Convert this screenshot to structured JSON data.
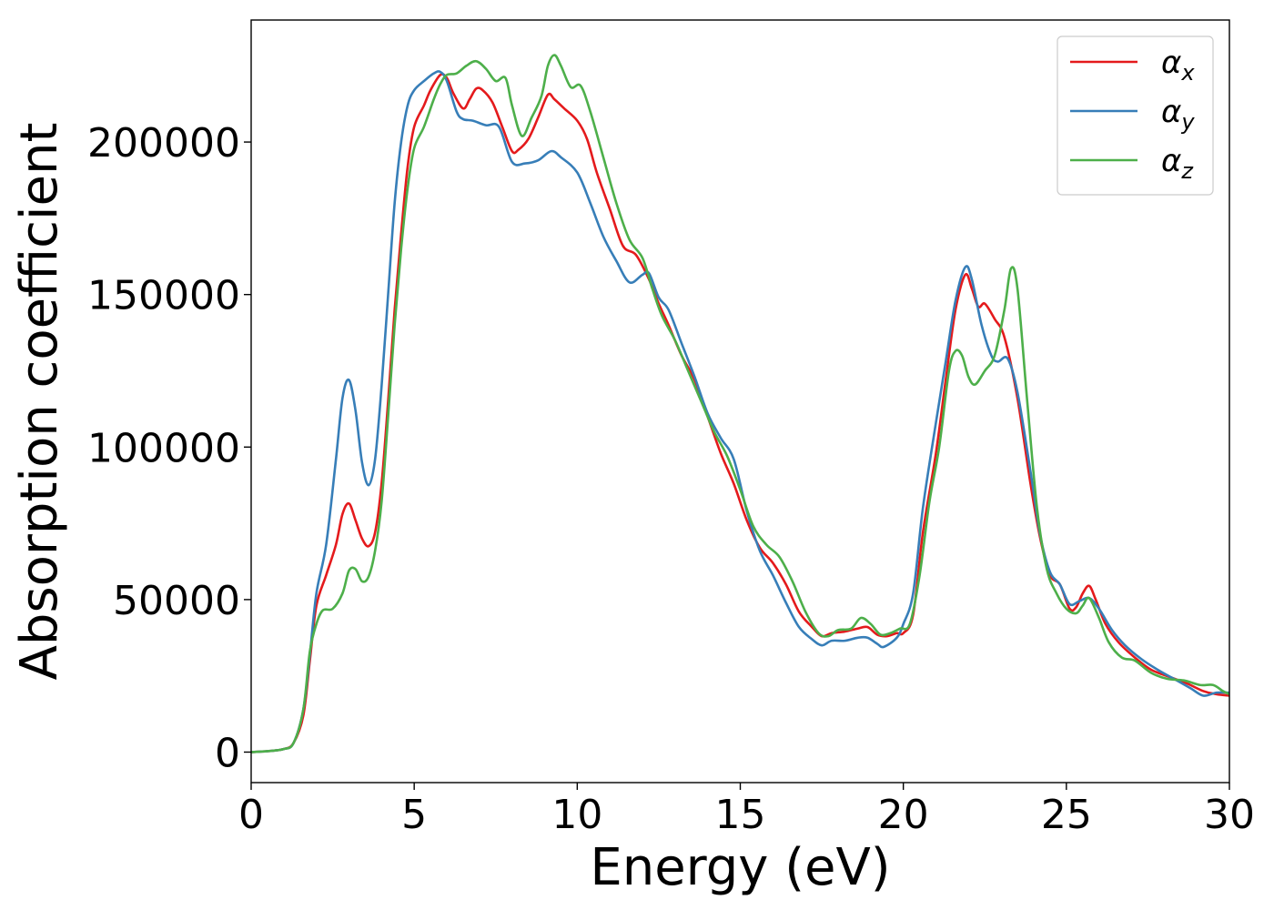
{
  "chart_data": {
    "type": "line",
    "title": "",
    "xlabel": "Energy (eV)",
    "ylabel": "Absorption coefficient",
    "xlim": [
      0,
      30
    ],
    "ylim": [
      -10000,
      240000
    ],
    "xticks": [
      0,
      5,
      10,
      15,
      20,
      25,
      30
    ],
    "yticks": [
      0,
      50000,
      100000,
      150000,
      200000
    ],
    "grid": false,
    "legend_position": "top-right",
    "series": [
      {
        "name": "α_x",
        "label_main": "α",
        "label_sub": "x",
        "color": "#e41a1c",
        "points": [
          [
            0,
            0
          ],
          [
            0.5,
            300
          ],
          [
            1,
            1000
          ],
          [
            1.3,
            3000
          ],
          [
            1.6,
            12000
          ],
          [
            1.8,
            30000
          ],
          [
            2,
            48000
          ],
          [
            2.3,
            58000
          ],
          [
            2.6,
            68000
          ],
          [
            2.8,
            78000
          ],
          [
            3,
            81500
          ],
          [
            3.2,
            76000
          ],
          [
            3.4,
            70000
          ],
          [
            3.6,
            67500
          ],
          [
            3.8,
            72000
          ],
          [
            4,
            88000
          ],
          [
            4.2,
            115000
          ],
          [
            4.4,
            145000
          ],
          [
            4.6,
            170000
          ],
          [
            4.8,
            192000
          ],
          [
            5,
            205000
          ],
          [
            5.3,
            212000
          ],
          [
            5.5,
            217000
          ],
          [
            5.8,
            222000
          ],
          [
            6,
            221000
          ],
          [
            6.2,
            216000
          ],
          [
            6.5,
            211000
          ],
          [
            6.7,
            214000
          ],
          [
            6.9,
            217500
          ],
          [
            7.1,
            217000
          ],
          [
            7.4,
            213000
          ],
          [
            7.7,
            205000
          ],
          [
            8,
            197000
          ],
          [
            8.2,
            197500
          ],
          [
            8.5,
            201000
          ],
          [
            8.8,
            208000
          ],
          [
            9.1,
            215500
          ],
          [
            9.3,
            214000
          ],
          [
            9.6,
            211000
          ],
          [
            10,
            207000
          ],
          [
            10.3,
            201000
          ],
          [
            10.6,
            190000
          ],
          [
            11,
            178000
          ],
          [
            11.4,
            166000
          ],
          [
            11.8,
            163000
          ],
          [
            12.2,
            155000
          ],
          [
            12.5,
            147000
          ],
          [
            12.8,
            140000
          ],
          [
            13.2,
            130000
          ],
          [
            13.6,
            122000
          ],
          [
            14,
            110000
          ],
          [
            14.4,
            98000
          ],
          [
            14.8,
            88000
          ],
          [
            15.2,
            76000
          ],
          [
            15.6,
            67000
          ],
          [
            16,
            62000
          ],
          [
            16.4,
            55000
          ],
          [
            16.8,
            46000
          ],
          [
            17.2,
            41000
          ],
          [
            17.5,
            38000
          ],
          [
            17.8,
            39000
          ],
          [
            18.2,
            39500
          ],
          [
            18.6,
            40500
          ],
          [
            18.9,
            41000
          ],
          [
            19.2,
            38500
          ],
          [
            19.5,
            38000
          ],
          [
            19.8,
            39000
          ],
          [
            20,
            39000
          ],
          [
            20.3,
            45000
          ],
          [
            20.6,
            72000
          ],
          [
            21,
            98000
          ],
          [
            21.3,
            122000
          ],
          [
            21.6,
            145000
          ],
          [
            21.9,
            156500
          ],
          [
            22.1,
            152000
          ],
          [
            22.3,
            146000
          ],
          [
            22.5,
            147000
          ],
          [
            22.8,
            142000
          ],
          [
            23.1,
            136000
          ],
          [
            23.5,
            116000
          ],
          [
            23.9,
            88000
          ],
          [
            24.2,
            70000
          ],
          [
            24.5,
            58000
          ],
          [
            24.8,
            55000
          ],
          [
            25.1,
            47000
          ],
          [
            25.3,
            47500
          ],
          [
            25.5,
            52000
          ],
          [
            25.7,
            54500
          ],
          [
            25.9,
            50000
          ],
          [
            26.2,
            42000
          ],
          [
            26.6,
            36000
          ],
          [
            27.1,
            31000
          ],
          [
            27.6,
            27000
          ],
          [
            28.2,
            24500
          ],
          [
            28.7,
            22500
          ],
          [
            29.2,
            20000
          ],
          [
            29.6,
            19000
          ],
          [
            30,
            18500
          ]
        ]
      },
      {
        "name": "α_y",
        "label_main": "α",
        "label_sub": "y",
        "color": "#377eb8",
        "points": [
          [
            0,
            0
          ],
          [
            0.5,
            300
          ],
          [
            1,
            1000
          ],
          [
            1.3,
            3000
          ],
          [
            1.6,
            14000
          ],
          [
            1.8,
            32000
          ],
          [
            2,
            52000
          ],
          [
            2.3,
            68000
          ],
          [
            2.6,
            96000
          ],
          [
            2.8,
            116000
          ],
          [
            3,
            122000
          ],
          [
            3.2,
            112000
          ],
          [
            3.4,
            95000
          ],
          [
            3.6,
            87500
          ],
          [
            3.8,
            96000
          ],
          [
            4,
            120000
          ],
          [
            4.2,
            150000
          ],
          [
            4.4,
            180000
          ],
          [
            4.6,
            200000
          ],
          [
            4.8,
            212000
          ],
          [
            5,
            217000
          ],
          [
            5.3,
            220000
          ],
          [
            5.6,
            222500
          ],
          [
            5.8,
            223000
          ],
          [
            6,
            220000
          ],
          [
            6.3,
            210000
          ],
          [
            6.5,
            207500
          ],
          [
            6.8,
            207000
          ],
          [
            7.2,
            205500
          ],
          [
            7.6,
            205000
          ],
          [
            8,
            193500
          ],
          [
            8.4,
            193000
          ],
          [
            8.8,
            194000
          ],
          [
            9.2,
            197000
          ],
          [
            9.5,
            195000
          ],
          [
            10,
            190000
          ],
          [
            10.4,
            180000
          ],
          [
            10.8,
            169000
          ],
          [
            11.2,
            161000
          ],
          [
            11.6,
            154000
          ],
          [
            12,
            156500
          ],
          [
            12.2,
            157000
          ],
          [
            12.5,
            149000
          ],
          [
            12.8,
            145000
          ],
          [
            13.2,
            134000
          ],
          [
            13.6,
            123000
          ],
          [
            14,
            111000
          ],
          [
            14.4,
            103000
          ],
          [
            14.8,
            96000
          ],
          [
            15.2,
            79000
          ],
          [
            15.6,
            66000
          ],
          [
            16,
            58000
          ],
          [
            16.4,
            49000
          ],
          [
            16.8,
            41000
          ],
          [
            17.2,
            37000
          ],
          [
            17.5,
            35000
          ],
          [
            17.8,
            36500
          ],
          [
            18.2,
            36500
          ],
          [
            18.6,
            37500
          ],
          [
            18.9,
            37500
          ],
          [
            19.2,
            35500
          ],
          [
            19.4,
            34500
          ],
          [
            19.8,
            37500
          ],
          [
            20,
            42000
          ],
          [
            20.3,
            52000
          ],
          [
            20.6,
            80000
          ],
          [
            21,
            108000
          ],
          [
            21.3,
            128000
          ],
          [
            21.6,
            148000
          ],
          [
            21.9,
            159000
          ],
          [
            22.1,
            155000
          ],
          [
            22.4,
            140000
          ],
          [
            22.7,
            130000
          ],
          [
            22.9,
            128000
          ],
          [
            23.2,
            129000
          ],
          [
            23.5,
            118000
          ],
          [
            23.9,
            92000
          ],
          [
            24.2,
            71000
          ],
          [
            24.5,
            59000
          ],
          [
            24.8,
            55000
          ],
          [
            25.1,
            48500
          ],
          [
            25.4,
            49500
          ],
          [
            25.7,
            50500
          ],
          [
            26,
            47000
          ],
          [
            26.4,
            40000
          ],
          [
            26.8,
            35000
          ],
          [
            27.3,
            30500
          ],
          [
            27.8,
            27000
          ],
          [
            28.3,
            24000
          ],
          [
            28.8,
            21000
          ],
          [
            29.2,
            18500
          ],
          [
            29.6,
            19500
          ],
          [
            30,
            19500
          ]
        ]
      },
      {
        "name": "α_z",
        "label_main": "α",
        "label_sub": "z",
        "color": "#4daf4a",
        "points": [
          [
            0,
            0
          ],
          [
            0.5,
            300
          ],
          [
            1,
            1000
          ],
          [
            1.3,
            3000
          ],
          [
            1.6,
            14000
          ],
          [
            1.8,
            33000
          ],
          [
            2,
            42000
          ],
          [
            2.2,
            46500
          ],
          [
            2.5,
            47000
          ],
          [
            2.8,
            52000
          ],
          [
            3,
            59500
          ],
          [
            3.2,
            60000
          ],
          [
            3.4,
            56000
          ],
          [
            3.6,
            57500
          ],
          [
            3.8,
            66000
          ],
          [
            4,
            82000
          ],
          [
            4.2,
            110000
          ],
          [
            4.4,
            140000
          ],
          [
            4.6,
            165000
          ],
          [
            4.8,
            185000
          ],
          [
            5,
            198000
          ],
          [
            5.3,
            205000
          ],
          [
            5.6,
            214000
          ],
          [
            5.8,
            219000
          ],
          [
            6,
            222000
          ],
          [
            6.3,
            222500
          ],
          [
            6.6,
            225000
          ],
          [
            6.9,
            226500
          ],
          [
            7.2,
            224000
          ],
          [
            7.5,
            220000
          ],
          [
            7.8,
            221000
          ],
          [
            8,
            212000
          ],
          [
            8.3,
            202000
          ],
          [
            8.6,
            208000
          ],
          [
            8.9,
            215000
          ],
          [
            9.1,
            225000
          ],
          [
            9.3,
            228500
          ],
          [
            9.5,
            225000
          ],
          [
            9.8,
            218000
          ],
          [
            10.1,
            218500
          ],
          [
            10.4,
            210000
          ],
          [
            10.8,
            195000
          ],
          [
            11.2,
            180000
          ],
          [
            11.6,
            168000
          ],
          [
            12,
            162000
          ],
          [
            12.3,
            152000
          ],
          [
            12.6,
            143000
          ],
          [
            13,
            135000
          ],
          [
            13.4,
            125000
          ],
          [
            13.8,
            115000
          ],
          [
            14.2,
            105000
          ],
          [
            14.6,
            97000
          ],
          [
            15,
            86000
          ],
          [
            15.4,
            74000
          ],
          [
            15.8,
            68000
          ],
          [
            16.2,
            64000
          ],
          [
            16.6,
            56000
          ],
          [
            17,
            46000
          ],
          [
            17.4,
            39000
          ],
          [
            17.7,
            38000
          ],
          [
            18,
            40000
          ],
          [
            18.4,
            40500
          ],
          [
            18.7,
            44000
          ],
          [
            19,
            42000
          ],
          [
            19.3,
            38500
          ],
          [
            19.6,
            39000
          ],
          [
            19.9,
            40500
          ],
          [
            20.2,
            42000
          ],
          [
            20.5,
            58000
          ],
          [
            20.8,
            82000
          ],
          [
            21.1,
            100000
          ],
          [
            21.4,
            125000
          ],
          [
            21.6,
            131500
          ],
          [
            21.8,
            130000
          ],
          [
            22,
            123000
          ],
          [
            22.2,
            120500
          ],
          [
            22.5,
            125000
          ],
          [
            22.8,
            130000
          ],
          [
            23.1,
            145000
          ],
          [
            23.3,
            158500
          ],
          [
            23.5,
            152000
          ],
          [
            23.8,
            115000
          ],
          [
            24.1,
            80000
          ],
          [
            24.4,
            60000
          ],
          [
            24.7,
            52000
          ],
          [
            25,
            47000
          ],
          [
            25.3,
            45500
          ],
          [
            25.5,
            48000
          ],
          [
            25.7,
            50500
          ],
          [
            26,
            44000
          ],
          [
            26.3,
            36000
          ],
          [
            26.7,
            31000
          ],
          [
            27.1,
            30000
          ],
          [
            27.6,
            26000
          ],
          [
            28.1,
            24000
          ],
          [
            28.6,
            23500
          ],
          [
            29.1,
            22000
          ],
          [
            29.5,
            22000
          ],
          [
            29.8,
            20000
          ],
          [
            30,
            19000
          ]
        ]
      }
    ]
  }
}
